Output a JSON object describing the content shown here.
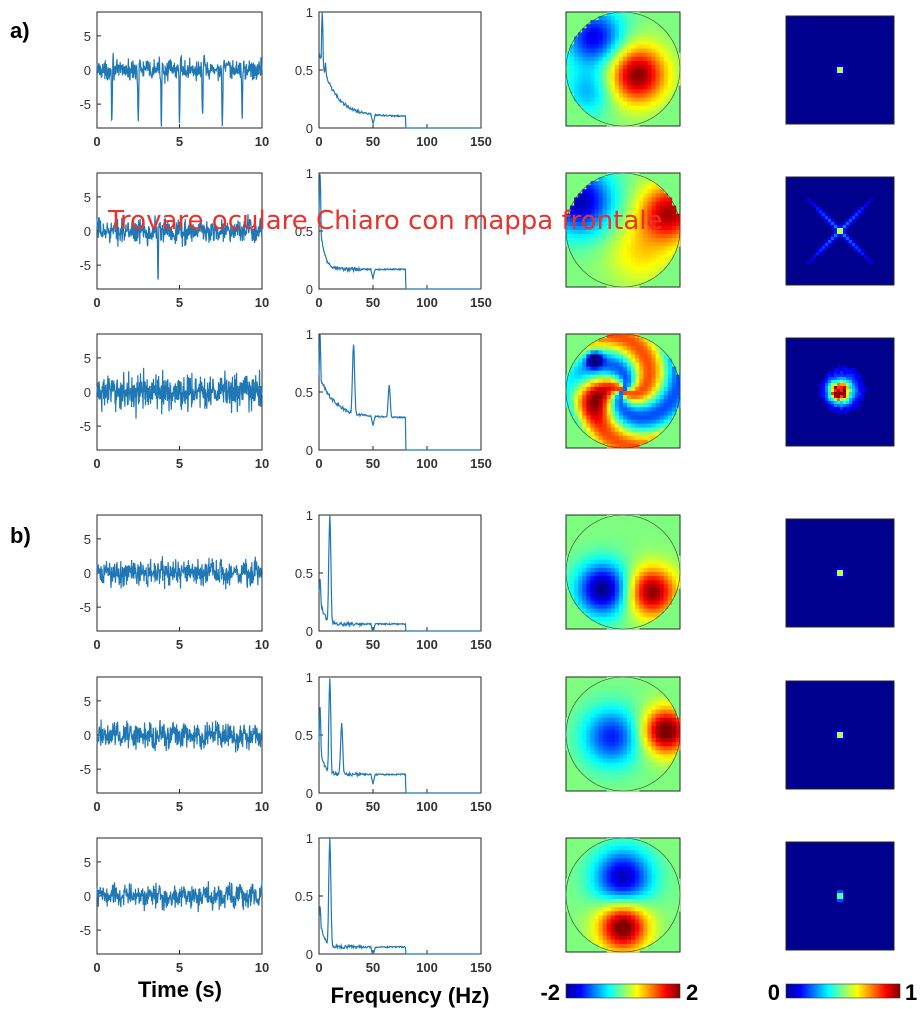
{
  "panel_labels": [
    "a)",
    "b)"
  ],
  "overlay_text": "Trovare oculare Chiaro con mappa frontale",
  "xlabels": {
    "time": "Time (s)",
    "frequency": "Frequency (Hz)"
  },
  "colorbars": [
    {
      "min_label": "-2",
      "max_label": "2",
      "scale": "jet"
    },
    {
      "min_label": "0",
      "max_label": "1",
      "scale": "jet"
    }
  ],
  "line_color": "#1f77b4",
  "chart_data": [
    {
      "panel": "a)",
      "row": 1,
      "type": "line",
      "xlim": [
        0,
        10
      ],
      "ylim": [
        -8.5,
        8.5
      ],
      "xticks": [
        0,
        5,
        10
      ],
      "yticks": [
        5,
        0,
        -5
      ],
      "spikes": [
        0.9,
        2.5,
        3.9,
        5.0,
        6.4,
        7.6,
        8.8
      ],
      "spike_sign": -1,
      "spike_amp": 7.5,
      "noise": 1.0
    },
    {
      "panel": "a)",
      "row": 1,
      "type": "line",
      "xlim": [
        0,
        150
      ],
      "ylim": [
        0,
        1
      ],
      "xticks": [
        0,
        50,
        100,
        150
      ],
      "yticks": [
        1,
        0.5,
        0
      ],
      "spectrum": "decay",
      "peaks": [
        [
          3,
          1.0
        ],
        [
          6,
          0.55
        ]
      ],
      "floor": 0.1
    },
    {
      "panel": "a)",
      "row": 2,
      "type": "line",
      "xlim": [
        0,
        10
      ],
      "ylim": [
        -8.5,
        8.5
      ],
      "xticks": [
        0,
        5,
        10
      ],
      "yticks": [
        5,
        0,
        -5
      ],
      "spikes": [
        3.7
      ],
      "spike_sign": -1,
      "spike_amp": 7.5,
      "noise": 1.2
    },
    {
      "panel": "a)",
      "row": 2,
      "type": "line",
      "xlim": [
        0,
        150
      ],
      "ylim": [
        0,
        1
      ],
      "xticks": [
        0,
        50,
        100,
        150
      ],
      "yticks": [
        1,
        0.5,
        0
      ],
      "spectrum": "decay-fast",
      "peaks": [
        [
          1,
          1.0
        ]
      ],
      "floor": 0.17
    },
    {
      "panel": "a)",
      "row": 3,
      "type": "line",
      "xlim": [
        0,
        10
      ],
      "ylim": [
        -8.5,
        8.5
      ],
      "xticks": [
        0,
        5,
        10
      ],
      "yticks": [
        5,
        0,
        -5
      ],
      "spikes": [],
      "spike_sign": 1,
      "spike_amp": 0,
      "noise": 1.8
    },
    {
      "panel": "a)",
      "row": 3,
      "type": "line",
      "xlim": [
        0,
        150
      ],
      "ylim": [
        0,
        1
      ],
      "xticks": [
        0,
        50,
        100,
        150
      ],
      "yticks": [
        1,
        0.5,
        0
      ],
      "spectrum": "decay",
      "peaks": [
        [
          1,
          1.0
        ],
        [
          32,
          0.62
        ],
        [
          65,
          0.3
        ]
      ],
      "floor": 0.28
    },
    {
      "panel": "b)",
      "row": 1,
      "type": "line",
      "xlim": [
        0,
        10
      ],
      "ylim": [
        -8.5,
        8.5
      ],
      "xticks": [
        0,
        5,
        10
      ],
      "yticks": [
        5,
        0,
        -5
      ],
      "spikes": [],
      "spike_sign": 1,
      "spike_amp": 0,
      "noise": 1.3
    },
    {
      "panel": "b)",
      "row": 1,
      "type": "line",
      "xlim": [
        0,
        150
      ],
      "ylim": [
        0,
        1
      ],
      "xticks": [
        0,
        50,
        100,
        150
      ],
      "yticks": [
        1,
        0.5,
        0
      ],
      "spectrum": "alpha",
      "peaks": [
        [
          1,
          0.45
        ],
        [
          10,
          1.0
        ]
      ],
      "floor": 0.06
    },
    {
      "panel": "b)",
      "row": 2,
      "type": "line",
      "xlim": [
        0,
        10
      ],
      "ylim": [
        -8.5,
        8.5
      ],
      "xticks": [
        0,
        5,
        10
      ],
      "yticks": [
        5,
        0,
        -5
      ],
      "spikes": [],
      "spike_sign": 1,
      "spike_amp": 0,
      "noise": 1.3
    },
    {
      "panel": "b)",
      "row": 2,
      "type": "line",
      "xlim": [
        0,
        150
      ],
      "ylim": [
        0,
        1
      ],
      "xticks": [
        0,
        50,
        100,
        150
      ],
      "yticks": [
        1,
        0.5,
        0
      ],
      "spectrum": "alpha",
      "peaks": [
        [
          1,
          0.75
        ],
        [
          10,
          1.0
        ],
        [
          21,
          0.45
        ]
      ],
      "floor": 0.16
    },
    {
      "panel": "b)",
      "row": 3,
      "type": "line",
      "xlim": [
        0,
        10
      ],
      "ylim": [
        -8.5,
        8.5
      ],
      "xticks": [
        0,
        5,
        10
      ],
      "yticks": [
        5,
        0,
        -5
      ],
      "spikes": [],
      "spike_sign": 1,
      "spike_amp": 0,
      "noise": 1.2
    },
    {
      "panel": "b)",
      "row": 3,
      "type": "line",
      "xlim": [
        0,
        150
      ],
      "ylim": [
        0,
        1
      ],
      "xticks": [
        0,
        50,
        100,
        150
      ],
      "yticks": [
        1,
        0.5,
        0
      ],
      "spectrum": "alpha",
      "peaks": [
        [
          1,
          0.4
        ],
        [
          10,
          1.0
        ]
      ],
      "floor": 0.06
    }
  ],
  "topomaps": [
    {
      "panel": "a)",
      "row": 1,
      "pattern": "central-blob"
    },
    {
      "panel": "a)",
      "row": 2,
      "pattern": "lateral"
    },
    {
      "panel": "a)",
      "row": 3,
      "pattern": "swirl"
    },
    {
      "panel": "b)",
      "row": 1,
      "pattern": "dipole-low"
    },
    {
      "panel": "b)",
      "row": 2,
      "pattern": "right-strong"
    },
    {
      "panel": "b)",
      "row": 3,
      "pattern": "posterior"
    }
  ],
  "spatial_maps": [
    {
      "panel": "a)",
      "row": 1,
      "pattern": "small-dot"
    },
    {
      "panel": "a)",
      "row": 2,
      "pattern": "cross"
    },
    {
      "panel": "a)",
      "row": 3,
      "pattern": "blob"
    },
    {
      "panel": "b)",
      "row": 1,
      "pattern": "small-dot"
    },
    {
      "panel": "b)",
      "row": 2,
      "pattern": "small-dot"
    },
    {
      "panel": "b)",
      "row": 3,
      "pattern": "vertical-dot"
    }
  ]
}
